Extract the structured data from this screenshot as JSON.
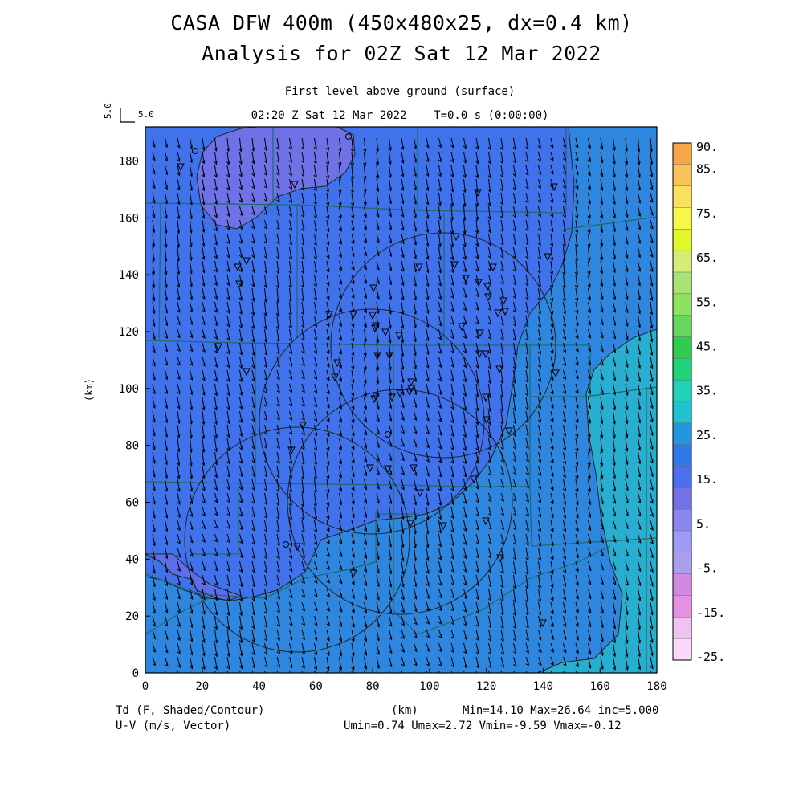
{
  "header": {
    "title_line1": "CASA DFW 400m (450x480x25, dx=0.4 km)",
    "title_line2": "Analysis for 02Z Sat 12 Mar 2022",
    "level": "First level above ground (surface)",
    "timestamp": "02:20 Z Sat 12 Mar 2022    T=0.0 s (0:00:00)"
  },
  "scale_reference": {
    "rotated": "5.0",
    "value": "5.0"
  },
  "axes": {
    "x_label": "(km)",
    "y_label": "(km)",
    "x_ticks": [
      "0",
      "20",
      "40",
      "60",
      "80",
      "100",
      "120",
      "140",
      "160",
      "180"
    ],
    "y_ticks": [
      "0",
      "20",
      "40",
      "60",
      "80",
      "100",
      "120",
      "140",
      "160",
      "180"
    ],
    "x_range": [
      0,
      180
    ],
    "y_range": [
      0,
      192
    ]
  },
  "footer": {
    "field": "Td (F, Shaded/Contour)",
    "vector": "U-V (m/s, Vector)",
    "stats_line1": "Min=14.10 Max=26.64 inc=5.000",
    "stats_line2": "Umin=0.74 Umax=2.72 Vmin=-9.59 Vmax=-0.12"
  },
  "colorbar": {
    "labels": [
      "90.",
      "85.",
      "75.",
      "65.",
      "55.",
      "45.",
      "35.",
      "25.",
      "15.",
      "5.",
      "-5.",
      "-15.",
      "-25."
    ],
    "colors": [
      "#f7a64a",
      "#f9c25a",
      "#fbe05e",
      "#f7f74a",
      "#e1f72c",
      "#d5ec76",
      "#a9e276",
      "#8ee261",
      "#66d860",
      "#2fcc4e",
      "#1fd47a",
      "#22d1b6",
      "#22c2d2",
      "#2496df",
      "#2f79eb",
      "#4a6fef",
      "#7371e4",
      "#8a87f1",
      "#9d9bf5",
      "#a8a0ec",
      "#d28ae0",
      "#e393e2",
      "#efc2ef",
      "#fad9fb"
    ]
  },
  "legend_colors": {
    "purple_region": "#6f72e6",
    "blue_region": "#3f72eb",
    "mid_blue_region": "#2f86de",
    "teal_region": "#27aed0",
    "cyan_region": "#22bdd2"
  }
}
